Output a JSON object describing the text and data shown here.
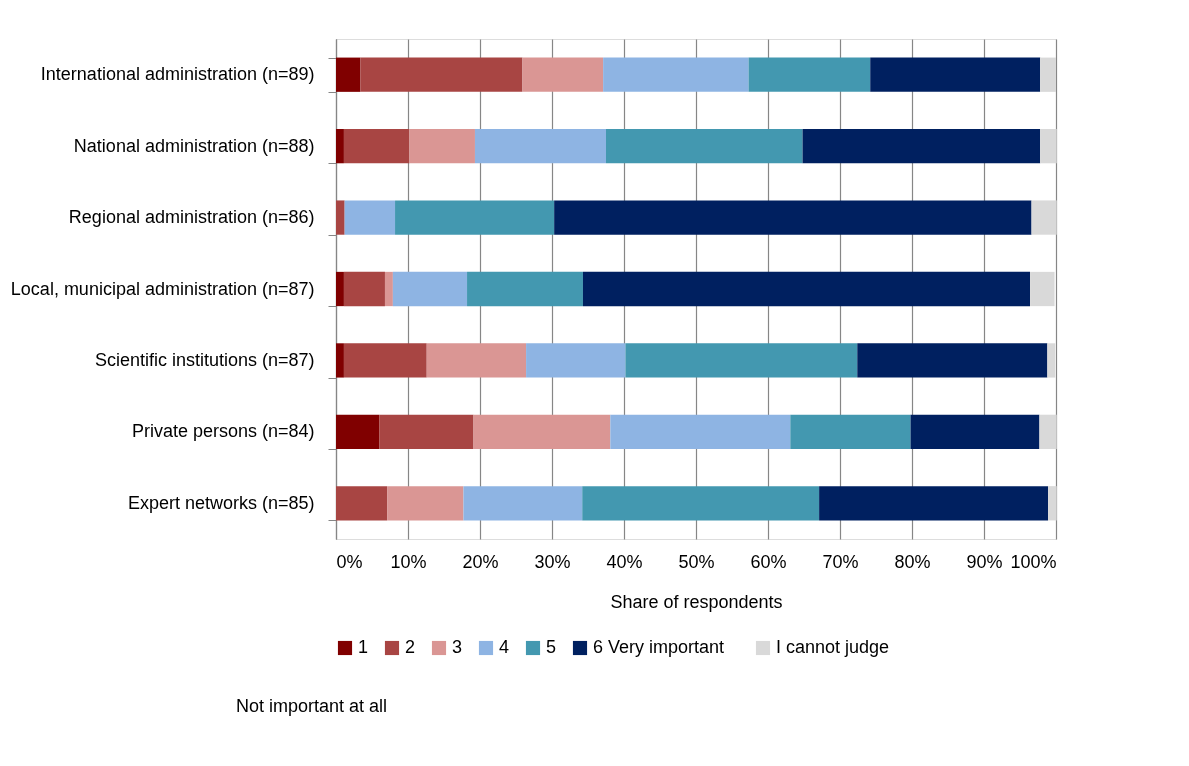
{
  "chart_data": {
    "type": "bar",
    "orientation": "horizontal",
    "stacked": true,
    "xlabel": "Share of respondents",
    "categories": [
      "International administration (n=89)",
      "National administration (n=88)",
      "Regional administration (n=86)",
      "Local, municipal administration (n=87)",
      "Scientific institutions (n=87)",
      "Private persons (n=84)",
      "Expert networks (n=85)"
    ],
    "series": [
      {
        "name": "1",
        "color": "#800000",
        "values": [
          3.4,
          1.1,
          0,
          1.1,
          1.1,
          6.0,
          0
        ]
      },
      {
        "name": "2",
        "color": "#a84543",
        "values": [
          22.5,
          9.1,
          1.2,
          5.7,
          11.5,
          13.1,
          7.1
        ]
      },
      {
        "name": "3",
        "color": "#da9694",
        "values": [
          11.2,
          9.1,
          0,
          1.1,
          13.8,
          19.0,
          10.6
        ]
      },
      {
        "name": "4",
        "color": "#8eb4e3",
        "values": [
          20.2,
          18.2,
          7.0,
          10.3,
          13.8,
          25.0,
          16.5
        ]
      },
      {
        "name": "5",
        "color": "#4398b0",
        "values": [
          16.9,
          27.3,
          22.1,
          16.1,
          32.2,
          16.7,
          32.9
        ]
      },
      {
        "name": "6    Very important",
        "color": "#002060",
        "values": [
          23.6,
          33.0,
          66.3,
          62.1,
          26.4,
          17.9,
          31.8
        ]
      },
      {
        "name": "I cannot judge",
        "color": "#d9d9d9",
        "values": [
          2.2,
          2.3,
          3.5,
          3.4,
          1.1,
          2.4,
          1.2
        ]
      }
    ],
    "xlim": [
      0,
      100
    ],
    "xticks": [
      {
        "value": 0,
        "label": "0%"
      },
      {
        "value": 10,
        "label": "10%"
      },
      {
        "value": 20,
        "label": "20%"
      },
      {
        "value": 30,
        "label": "30%"
      },
      {
        "value": 40,
        "label": "40%"
      },
      {
        "value": 50,
        "label": "50%"
      },
      {
        "value": 60,
        "label": "60%"
      },
      {
        "value": 70,
        "label": "70%"
      },
      {
        "value": 80,
        "label": "80%"
      },
      {
        "value": 90,
        "label": "90%"
      },
      {
        "value": 100,
        "label": "100%"
      }
    ],
    "grid": "x",
    "legend": "bottom",
    "annotations": [
      "Not important at all"
    ]
  }
}
